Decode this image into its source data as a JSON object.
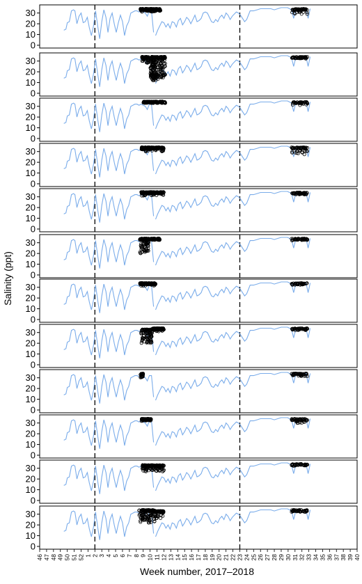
{
  "chart_data": {
    "type": "line",
    "ylabel": "Salinity (ppt)",
    "xlabel": "Week number, 2017–2018",
    "ylim": [
      0,
      35
    ],
    "yticks": [
      0,
      10,
      20,
      30
    ],
    "week_ticks": [
      "46",
      "47",
      "48",
      "49",
      "50",
      "51",
      "52",
      "1",
      "2",
      "3",
      "4",
      "5",
      "6",
      "7",
      "8",
      "9",
      "10",
      "11",
      "12",
      "13",
      "14",
      "15",
      "16",
      "17",
      "18",
      "19",
      "20",
      "21",
      "22",
      "23",
      "24",
      "25",
      "26",
      "27",
      "28",
      "29",
      "30",
      "31",
      "32",
      "33",
      "34",
      "35",
      "36",
      "37",
      "38",
      "39",
      "40"
    ],
    "xlim_index": [
      0,
      46
    ],
    "dashed_lines_at_index": [
      8,
      29
    ],
    "panel_count": 12,
    "colors": {
      "line": "#7aacea",
      "points": "#000000",
      "dashed": "#000000"
    },
    "salinity_series": {
      "name": "",
      "x_index": [
        3.5,
        3.8,
        4.0,
        4.3,
        4.6,
        4.9,
        5.1,
        5.4,
        5.7,
        6.0,
        6.3,
        6.6,
        6.9,
        7.2,
        7.5,
        7.8,
        8.1,
        8.4,
        8.7,
        9.0,
        9.3,
        9.6,
        9.9,
        10.2,
        10.5,
        10.8,
        11.1,
        11.4,
        11.7,
        12.0,
        12.3,
        12.6,
        12.9,
        13.2,
        13.5,
        13.8,
        14.1,
        14.4,
        14.7,
        15.0,
        15.3,
        15.6,
        15.9,
        16.2,
        16.5,
        16.8,
        17.1,
        17.4,
        17.7,
        18.0,
        18.3,
        18.6,
        18.9,
        19.2,
        19.5,
        19.8,
        20.1,
        20.4,
        20.7,
        21.0,
        21.3,
        21.6,
        21.9,
        22.2,
        22.5,
        22.8,
        23.1,
        23.4,
        23.7,
        24.0,
        24.3,
        24.6,
        24.9,
        25.2,
        25.5,
        25.8,
        26.1,
        26.4,
        26.7,
        27.0,
        27.3,
        27.6,
        27.9,
        28.2,
        28.5,
        28.8,
        29.1,
        29.4,
        29.7,
        30.0,
        30.5,
        31.0,
        31.5,
        32.0,
        32.5,
        33.0,
        33.5,
        34.0,
        34.5,
        35.0,
        35.3,
        35.6,
        35.9,
        36.2,
        36.5,
        36.8,
        37.1,
        37.4,
        37.7,
        38.0,
        38.3,
        38.6,
        38.9,
        39.2
      ],
      "values": [
        14,
        15,
        21,
        22,
        32,
        33,
        32,
        20,
        27,
        30,
        21,
        22,
        26,
        16,
        9,
        18,
        32,
        18,
        6,
        22,
        33,
        26,
        12,
        25,
        30,
        20,
        12,
        21,
        28,
        22,
        9,
        18,
        22,
        30,
        31,
        32,
        32,
        31,
        32,
        31,
        30,
        27,
        32,
        32,
        12,
        9,
        14,
        18,
        22,
        21,
        17,
        20,
        16,
        22,
        21,
        17,
        23,
        25,
        19,
        22,
        26,
        24,
        20,
        24,
        28,
        22,
        23,
        25,
        30,
        31,
        30,
        26,
        22,
        21,
        24,
        22,
        26,
        28,
        25,
        30,
        28,
        24,
        27,
        29,
        31,
        30,
        28,
        25,
        22,
        24,
        32,
        32,
        33,
        34,
        34,
        34,
        34,
        33,
        34,
        35,
        35,
        35,
        35,
        34,
        33,
        25,
        33,
        34,
        34,
        33,
        34,
        34,
        25,
        34
      ]
    }
  }
}
